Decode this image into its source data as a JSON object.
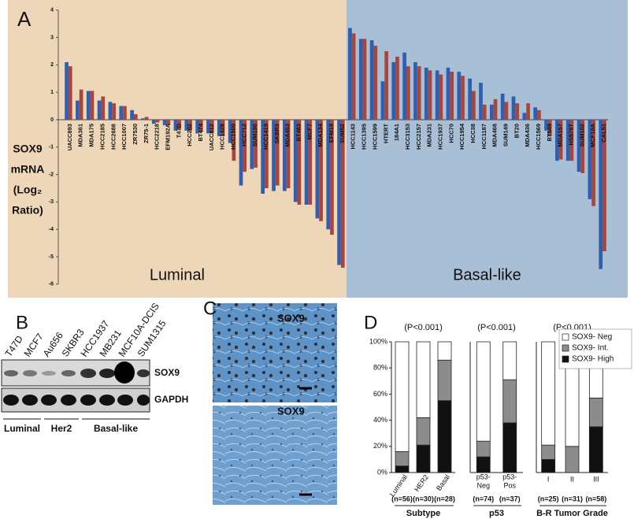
{
  "chart_data": [
    {
      "type": "bar",
      "ylabel": [
        "SOX9",
        "mRNA",
        "(Log₂",
        "Ratio)"
      ],
      "groups": [
        {
          "label": "Luminal",
          "background": "#eed6b9",
          "categories": [
            "UACC893",
            "MDA361",
            "MDA175",
            "HCC2185",
            "HCC2688",
            "HCC1007",
            "ZR7530",
            "ZR75-1",
            "HCC2218",
            "EFM192A",
            "T47D",
            "HCC202",
            "BT474",
            "UACC812",
            "HCC1428",
            "HCC1500",
            "HCC712",
            "SUM190",
            "HCC1419",
            "SKBR3",
            "MDA453",
            "BT483",
            "MCF7",
            "MDA134",
            "EFM19",
            "SUM52"
          ]
        },
        {
          "label": "Basal-like",
          "background": "#a9bfd6",
          "categories": [
            "HCC1143",
            "HCC1395",
            "HCC1599",
            "HTERT",
            "184A1",
            "HCC3153",
            "HCC2157",
            "MDA231",
            "HCC1937",
            "HCC70",
            "HCC1954",
            "HCC38",
            "HCC1187",
            "MDA468",
            "SUM149",
            "BT20",
            "MDA436",
            "HCC1569",
            "BT549",
            "MDA157",
            "HS578T",
            "SUM102",
            "MCF10A",
            "CAL51"
          ]
        }
      ],
      "series": [
        {
          "color": "#2f5fb0",
          "values": [
            2.1,
            0.7,
            1.05,
            0.7,
            0.65,
            0.5,
            0.35,
            0.05,
            -0.15,
            -0.2,
            -0.4,
            -0.4,
            -0.5,
            -0.5,
            -0.6,
            -0.85,
            -2.4,
            -1.8,
            -2.7,
            -2.6,
            -2.6,
            -3.0,
            -3.1,
            -3.6,
            -4.0,
            -5.3,
            3.35,
            2.95,
            2.9,
            1.4,
            2.1,
            2.45,
            2.1,
            1.9,
            1.8,
            1.9,
            1.75,
            1.5,
            1.35,
            0.55,
            0.95,
            0.85,
            0.25,
            0.45,
            -0.4,
            -1.5,
            -1.5,
            -1.9,
            -2.9,
            -5.45
          ]
        },
        {
          "color": "#a8463c",
          "values": [
            1.95,
            1.1,
            1.05,
            0.85,
            0.6,
            0.5,
            0.2,
            0.1,
            -0.1,
            -0.2,
            -0.35,
            -0.4,
            -0.45,
            -0.5,
            -0.6,
            -1.5,
            -1.9,
            -1.75,
            -2.5,
            -2.4,
            -2.5,
            -3.1,
            -3.1,
            -3.7,
            -4.2,
            -5.4,
            3.15,
            2.95,
            2.7,
            2.5,
            2.3,
            1.95,
            1.95,
            1.8,
            1.65,
            1.75,
            1.6,
            1.05,
            0.55,
            0.75,
            0.65,
            0.6,
            0.6,
            0.35,
            -0.6,
            -1.45,
            -1.5,
            -1.95,
            -3.15,
            -4.8
          ]
        }
      ],
      "ylim": [
        -6,
        4
      ],
      "yticks": [
        -6,
        -5,
        -4,
        -3,
        -2,
        -1,
        0,
        1,
        2,
        3,
        4
      ]
    },
    {
      "type": "stacked_bar",
      "title": "(P<0.001)",
      "categories": [
        "Luminal",
        "HER2",
        "Basal"
      ],
      "xtick_rotation": -55,
      "n_labels": [
        "(n=56)",
        "(n=30)",
        "(n=28)"
      ],
      "xlabel": "Subtype",
      "series": [
        {
          "color": "#111111",
          "values": [
            5,
            21,
            55
          ]
        },
        {
          "color": "#8c8c8c",
          "values": [
            11,
            21,
            31
          ]
        },
        {
          "color": "#ffffff",
          "values": [
            84,
            58,
            14
          ]
        }
      ],
      "ylim": [
        0,
        100
      ],
      "yticks": [
        {
          "value": 0,
          "label": "0%"
        },
        {
          "value": 20,
          "label": "20%"
        },
        {
          "value": 40,
          "label": "40%"
        },
        {
          "value": 60,
          "label": "60%"
        },
        {
          "value": 80,
          "label": "80%"
        },
        {
          "value": 100,
          "label": "100%"
        }
      ]
    },
    {
      "type": "stacked_bar",
      "title": "(P<0.001)",
      "categories": [
        [
          "p53-",
          "Neg"
        ],
        [
          "p53-",
          "Pos"
        ]
      ],
      "n_labels": [
        "(n=74)",
        "(n=37)"
      ],
      "xlabel": "p53",
      "series": [
        {
          "color": "#111111",
          "values": [
            12,
            38
          ]
        },
        {
          "color": "#8c8c8c",
          "values": [
            12,
            33
          ]
        },
        {
          "color": "#ffffff",
          "values": [
            76,
            29
          ]
        }
      ],
      "ylim": [
        0,
        100
      ]
    },
    {
      "type": "stacked_bar",
      "title": "(P<0.001)",
      "categories": [
        "I",
        "II",
        "III"
      ],
      "n_labels": [
        "(n=25)",
        "(n=31)",
        "(n=58)"
      ],
      "xlabel": "B-R Tumor Grade",
      "series": [
        {
          "name": "SOX9- High",
          "color": "#111111",
          "values": [
            10,
            0,
            35
          ]
        },
        {
          "name": "SOX9- Int.",
          "color": "#8c8c8c",
          "values": [
            11,
            20,
            22
          ]
        },
        {
          "name": "SOX9- Neg",
          "color": "#ffffff",
          "values": [
            79,
            80,
            43
          ]
        }
      ],
      "ylim": [
        0,
        100
      ]
    }
  ],
  "panel_labels": [
    "A",
    "B",
    "C",
    "D"
  ],
  "blot": {
    "lanes": [
      "T47D",
      "MCF7",
      "Au656",
      "SKBR3",
      "HCC1937",
      "MB231",
      "MCF10A-DCIS",
      "SUM1315"
    ],
    "rows": [
      "SOX9",
      "GAPDH"
    ],
    "groups": [
      "Luminal",
      "Her2",
      "Basal-like"
    ]
  },
  "histology": {
    "stain_labels": [
      "SOX9",
      "SOX9"
    ]
  }
}
